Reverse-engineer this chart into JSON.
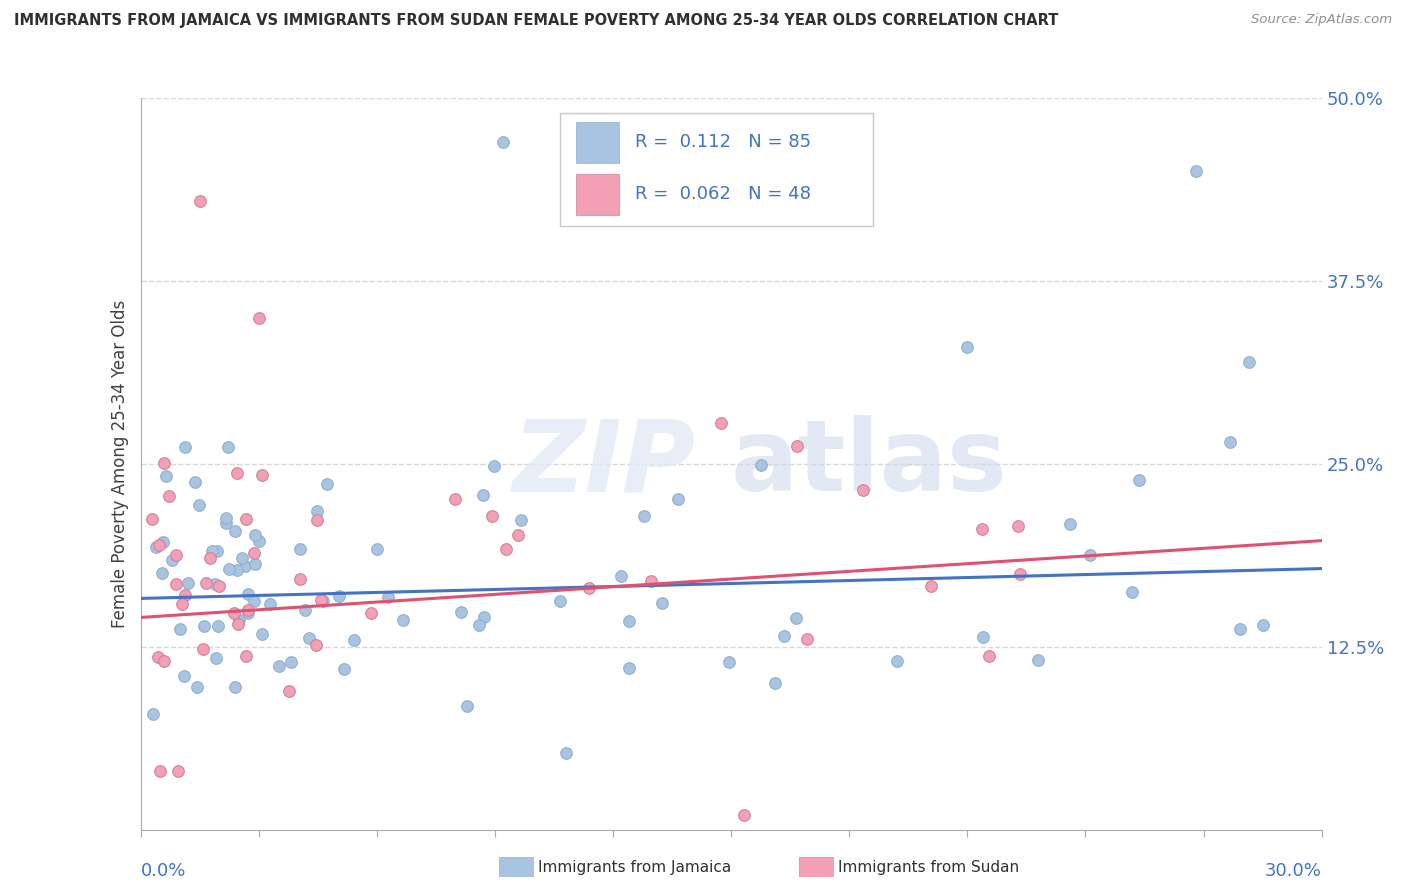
{
  "title": "IMMIGRANTS FROM JAMAICA VS IMMIGRANTS FROM SUDAN FEMALE POVERTY AMONG 25-34 YEAR OLDS CORRELATION CHART",
  "source": "Source: ZipAtlas.com",
  "ylabel": "Female Poverty Among 25-34 Year Olds",
  "xlim": [
    0.0,
    30.0
  ],
  "ylim": [
    0.0,
    50.0
  ],
  "ytick_values": [
    0.0,
    12.5,
    25.0,
    37.5,
    50.0
  ],
  "ytick_labels": [
    "",
    "12.5%",
    "25.0%",
    "37.5%",
    "50.0%"
  ],
  "jamaica_color": "#a8c4e0",
  "sudan_color": "#f4a0b4",
  "jamaica_line_color": "#4472c4",
  "sudan_line_color": "#e05070",
  "legend_color": "#4472c4",
  "axis_tick_color": "#4472c4",
  "title_color": "#303030",
  "source_color": "#909090",
  "grid_color": "#d8d8d8",
  "background": "#ffffff",
  "jamaica_trend_intercept": 15.8,
  "jamaica_trend_slope": 0.068,
  "sudan_trend_intercept": 14.5,
  "sudan_trend_slope": 0.175,
  "watermark_zip_color": "#d8e4f0",
  "watermark_atlas_color": "#c8d8e8"
}
